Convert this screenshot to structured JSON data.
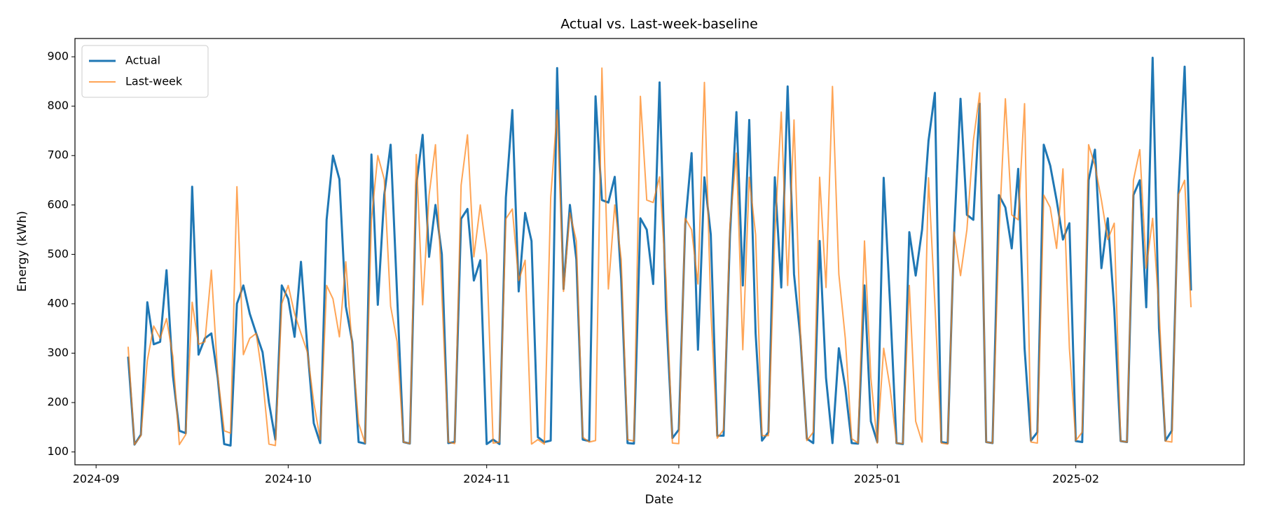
{
  "chart_data": {
    "type": "line",
    "title": "Actual vs. Last-week-baseline",
    "x_label": "Date",
    "y_label": "Energy (kWh)",
    "xlim": [
      -8.3,
      174.3
    ],
    "xticks": [
      {
        "value": -5,
        "label": "2024-09"
      },
      {
        "value": 25,
        "label": "2024-10"
      },
      {
        "value": 56,
        "label": "2024-11"
      },
      {
        "value": 86,
        "label": "2024-12"
      },
      {
        "value": 117,
        "label": "2025-01"
      },
      {
        "value": 148,
        "label": "2025-02"
      }
    ],
    "ylim": [
      74,
      937
    ],
    "yticks": [
      100,
      200,
      300,
      400,
      500,
      600,
      700,
      800,
      900
    ],
    "legend": "upper left",
    "series": [
      {
        "name": "Actual",
        "color": "#1f77b4",
        "values": [
          293,
          115,
          135,
          403,
          318,
          323,
          468,
          255,
          143,
          138,
          637,
          297,
          330,
          340,
          250,
          116,
          113,
          400,
          437,
          380,
          340,
          302,
          200,
          125,
          437,
          410,
          333,
          485,
          310,
          158,
          118,
          570,
          700,
          652,
          395,
          323,
          120,
          117,
          702,
          398,
          620,
          722,
          420,
          120,
          117,
          640,
          742,
          495,
          600,
          500,
          118,
          120,
          572,
          592,
          447,
          488,
          116,
          125,
          116,
          615,
          792,
          425,
          584,
          527,
          130,
          120,
          123,
          877,
          430,
          600,
          490,
          125,
          122,
          820,
          610,
          605,
          657,
          450,
          118,
          117,
          573,
          550,
          440,
          848,
          390,
          128,
          145,
          560,
          705,
          307,
          656,
          540,
          133,
          133,
          540,
          788,
          437,
          772,
          340,
          123,
          140,
          656,
          433,
          840,
          460,
          330,
          127,
          118,
          527,
          250,
          118,
          310,
          230,
          118,
          117,
          437,
          162,
          120,
          655,
          400,
          118,
          116,
          545,
          457,
          550,
          730,
          827,
          120,
          118,
          540,
          815,
          580,
          570,
          805,
          120,
          118,
          620,
          595,
          512,
          673,
          310,
          123,
          140,
          722,
          680,
          610,
          530,
          563,
          122,
          120,
          650,
          712,
          472,
          573,
          390,
          122,
          120,
          620,
          650,
          393,
          898,
          350,
          123,
          143,
          620,
          880,
          427
        ]
      },
      {
        "name": "Last-week",
        "color": "#ff7f0e",
        "values": [
          313,
          115,
          133,
          285,
          355,
          330,
          370,
          293,
          115,
          135,
          403,
          318,
          323,
          468,
          255,
          143,
          138,
          637,
          297,
          330,
          340,
          250,
          116,
          113,
          400,
          437,
          380,
          340,
          302,
          200,
          125,
          437,
          410,
          333,
          485,
          310,
          158,
          118,
          570,
          700,
          652,
          395,
          323,
          120,
          117,
          702,
          398,
          620,
          722,
          420,
          120,
          117,
          640,
          742,
          495,
          600,
          500,
          118,
          120,
          572,
          592,
          447,
          488,
          116,
          125,
          116,
          615,
          792,
          425,
          584,
          527,
          130,
          120,
          123,
          877,
          430,
          600,
          490,
          125,
          122,
          820,
          610,
          605,
          657,
          450,
          118,
          117,
          573,
          550,
          440,
          848,
          390,
          128,
          145,
          560,
          705,
          307,
          656,
          540,
          133,
          133,
          540,
          788,
          437,
          772,
          340,
          123,
          140,
          656,
          433,
          840,
          460,
          330,
          127,
          118,
          527,
          250,
          118,
          310,
          230,
          118,
          117,
          437,
          162,
          120,
          655,
          400,
          118,
          116,
          545,
          457,
          550,
          730,
          827,
          120,
          118,
          540,
          815,
          580,
          570,
          805,
          120,
          118,
          620,
          595,
          512,
          673,
          310,
          123,
          140,
          722,
          680,
          610,
          530,
          563,
          122,
          120,
          650,
          712,
          472,
          573,
          390,
          122,
          120,
          620,
          650,
          393
        ]
      }
    ]
  }
}
